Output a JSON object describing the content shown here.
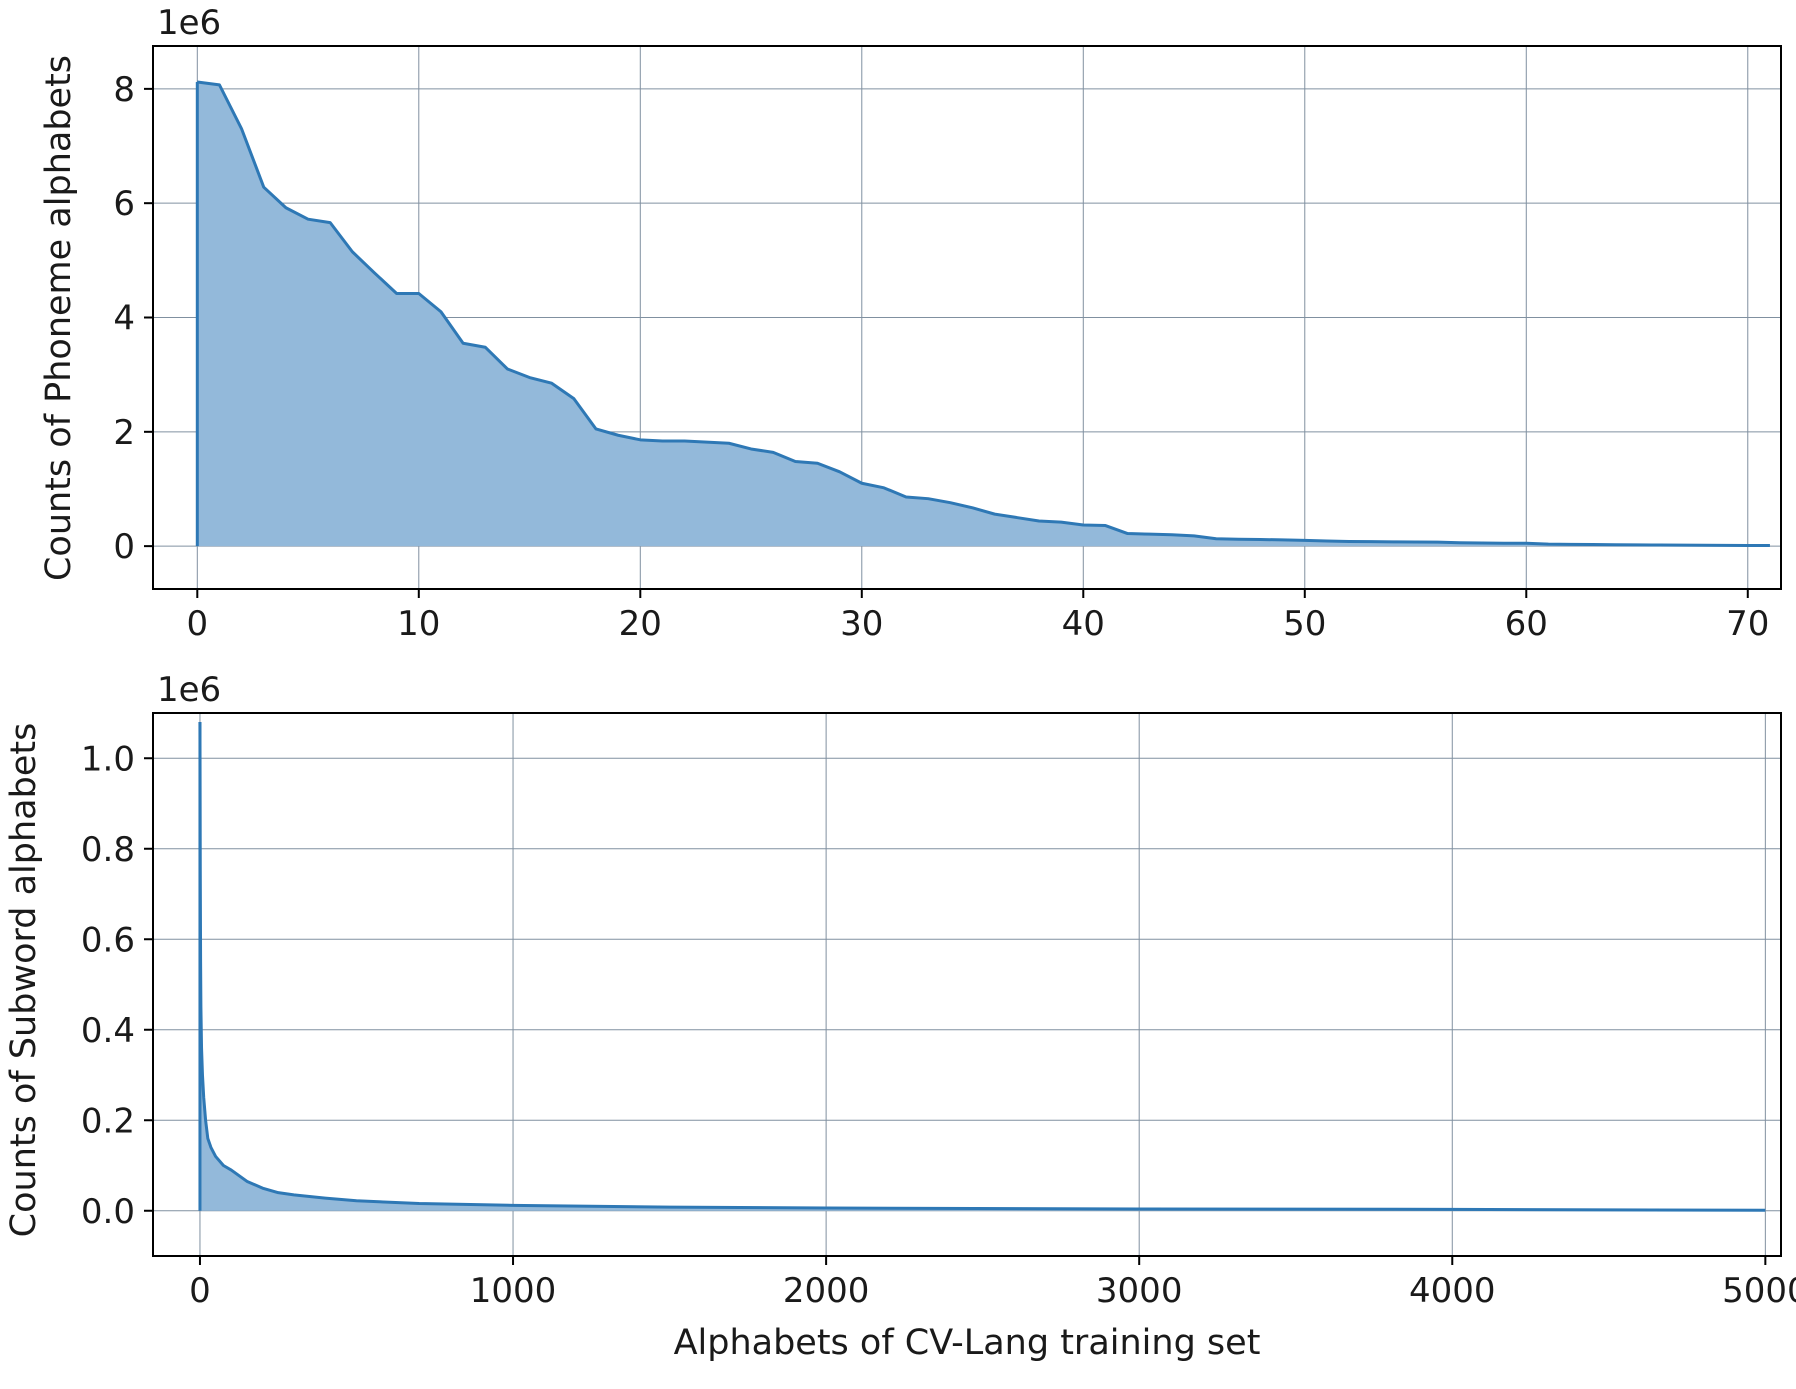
{
  "colors": {
    "line": "#2e78b5",
    "fill": "#93b9da",
    "grid": "#8090a0",
    "axis": "#000000",
    "background": "#ffffff"
  },
  "chart_data": [
    {
      "type": "area",
      "xlabel": "",
      "ylabel": "Counts of Phoneme alphabets",
      "offset_text": "1e6",
      "xlim": [
        -2,
        71.5
      ],
      "ylim": [
        -0.75,
        8.75
      ],
      "xticks": [
        0,
        10,
        20,
        30,
        40,
        50,
        60,
        70
      ],
      "xtick_labels": [
        "0",
        "10",
        "20",
        "30",
        "40",
        "50",
        "60",
        "70"
      ],
      "yticks": [
        0,
        2,
        4,
        6,
        8
      ],
      "ytick_labels": [
        "0",
        "2",
        "4",
        "6",
        "8"
      ],
      "grid": true,
      "unit_scale": "1e6",
      "x": [
        0,
        1,
        2,
        3,
        4,
        5,
        6,
        7,
        8,
        9,
        10,
        11,
        12,
        13,
        14,
        15,
        16,
        17,
        18,
        19,
        20,
        21,
        22,
        23,
        24,
        25,
        26,
        27,
        28,
        29,
        30,
        31,
        32,
        33,
        34,
        35,
        36,
        37,
        38,
        39,
        40,
        41,
        42,
        43,
        44,
        45,
        46,
        47,
        48,
        49,
        50,
        51,
        52,
        53,
        54,
        55,
        56,
        57,
        58,
        59,
        60,
        61,
        62,
        63,
        64,
        65,
        66,
        67,
        68,
        69,
        70,
        71
      ],
      "y": [
        8.12,
        8.07,
        7.3,
        6.28,
        5.92,
        5.72,
        5.66,
        5.15,
        4.78,
        4.42,
        4.42,
        4.1,
        3.55,
        3.48,
        3.1,
        2.95,
        2.85,
        2.58,
        2.05,
        1.94,
        1.86,
        1.84,
        1.84,
        1.82,
        1.8,
        1.7,
        1.64,
        1.48,
        1.45,
        1.3,
        1.1,
        1.02,
        0.86,
        0.83,
        0.76,
        0.67,
        0.56,
        0.5,
        0.44,
        0.42,
        0.37,
        0.36,
        0.22,
        0.21,
        0.2,
        0.18,
        0.13,
        0.12,
        0.115,
        0.11,
        0.1,
        0.09,
        0.08,
        0.078,
        0.075,
        0.072,
        0.07,
        0.06,
        0.055,
        0.05,
        0.05,
        0.035,
        0.03,
        0.028,
        0.025,
        0.022,
        0.02,
        0.018,
        0.016,
        0.014,
        0.012,
        0.01
      ]
    },
    {
      "type": "area",
      "xlabel": "Alphabets of CV-Lang training set",
      "ylabel": "Counts of Subword alphabets",
      "offset_text": "1e6",
      "xlim": [
        -150,
        5050
      ],
      "ylim": [
        -0.1,
        1.1
      ],
      "xticks": [
        0,
        1000,
        2000,
        3000,
        4000,
        5000
      ],
      "xtick_labels": [
        "0",
        "1000",
        "2000",
        "3000",
        "4000",
        "5000"
      ],
      "yticks": [
        0,
        0.2,
        0.4,
        0.6,
        0.8,
        1.0
      ],
      "ytick_labels": [
        "0.0",
        "0.2",
        "0.4",
        "0.6",
        "0.8",
        "1.0"
      ],
      "grid": true,
      "unit_scale": "1e6",
      "x": [
        0,
        1,
        2,
        3,
        5,
        8,
        12,
        18,
        25,
        35,
        50,
        75,
        100,
        150,
        200,
        250,
        300,
        400,
        500,
        700,
        1000,
        1500,
        2000,
        3000,
        4000,
        5000
      ],
      "y": [
        1.08,
        0.75,
        0.55,
        0.45,
        0.36,
        0.3,
        0.25,
        0.2,
        0.16,
        0.14,
        0.12,
        0.1,
        0.09,
        0.065,
        0.05,
        0.04,
        0.035,
        0.028,
        0.022,
        0.016,
        0.012,
        0.008,
        0.006,
        0.004,
        0.003,
        0.001
      ]
    }
  ]
}
